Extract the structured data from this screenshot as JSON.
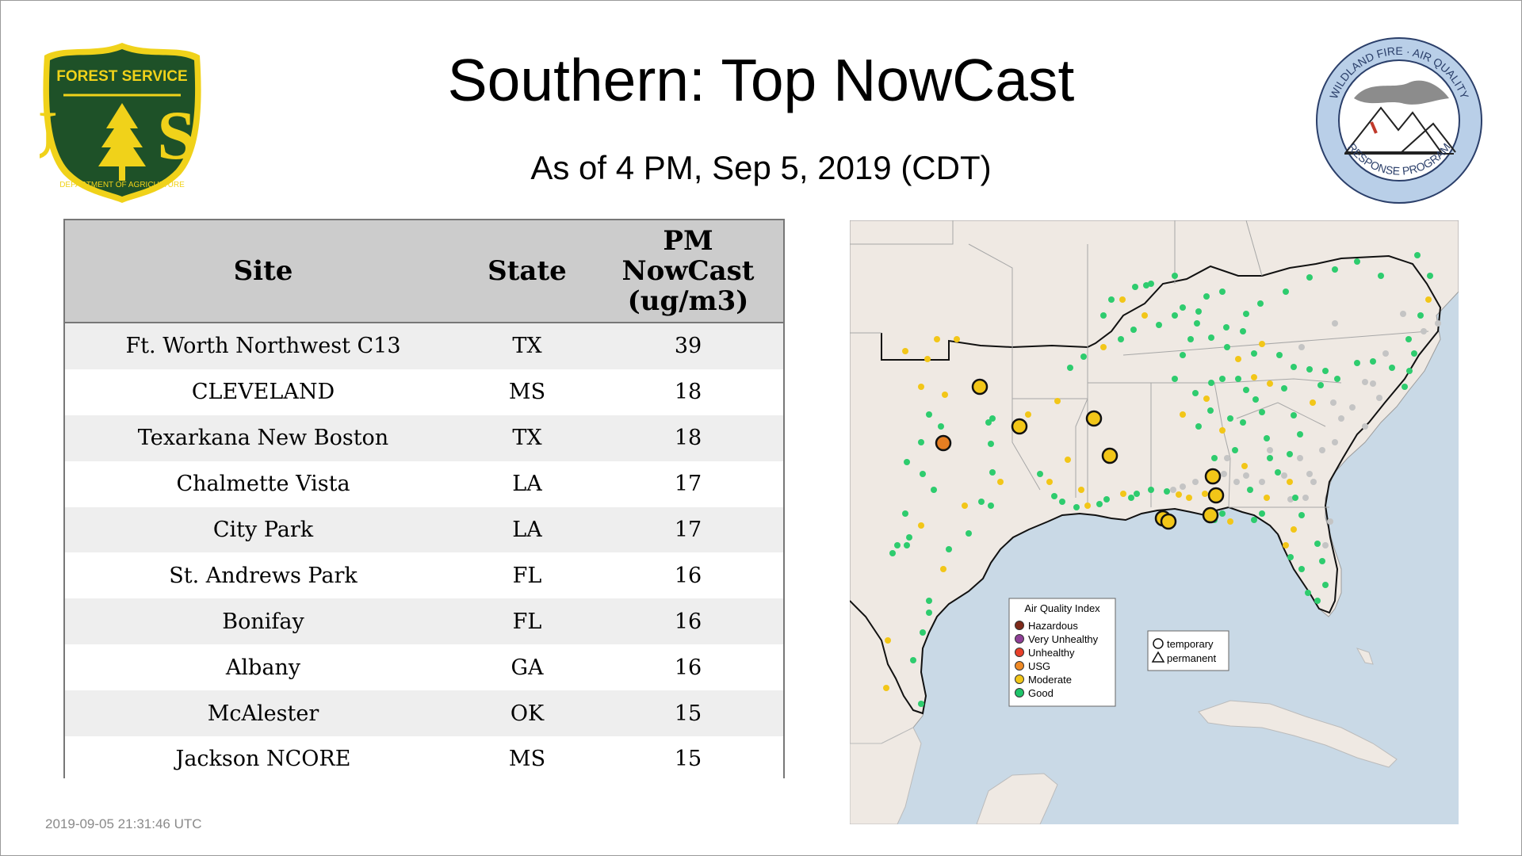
{
  "title": "Southern: Top NowCast",
  "subtitle": "As of  4 PM, Sep  5, 2019 (CDT)",
  "timestamp": "2019-09-05 21:31:46 UTC",
  "logos": {
    "forest_service": {
      "top_text": "FOREST SERVICE",
      "letters": "U S",
      "bottom_text": "DEPARTMENT OF AGRICULTURE"
    },
    "wildland_fire": {
      "top_text": "WILDLAND FIRE · AIR QUALITY",
      "bottom_text": "RESPONSE PROGRAM"
    }
  },
  "table": {
    "headers": {
      "site": "Site",
      "state": "State",
      "pm_line1": "PM",
      "pm_line2": "NowCast",
      "pm_line3": "(ug/m3)"
    },
    "rows": [
      {
        "site": "Ft. Worth Northwest C13",
        "state": "TX",
        "value": "39"
      },
      {
        "site": "CLEVELAND",
        "state": "MS",
        "value": "18"
      },
      {
        "site": "Texarkana New Boston",
        "state": "TX",
        "value": "18"
      },
      {
        "site": "Chalmette Vista",
        "state": "LA",
        "value": "17"
      },
      {
        "site": "City Park",
        "state": "LA",
        "value": "17"
      },
      {
        "site": "St. Andrews Park",
        "state": "FL",
        "value": "16"
      },
      {
        "site": "Bonifay",
        "state": "FL",
        "value": "16"
      },
      {
        "site": "Albany",
        "state": "GA",
        "value": "16"
      },
      {
        "site": "McAlester",
        "state": "OK",
        "value": "15"
      },
      {
        "site": "Jackson NCORE",
        "state": "MS",
        "value": "15"
      }
    ]
  },
  "map": {
    "legend": {
      "title": "Air Quality Index",
      "items": [
        {
          "label": "Hazardous",
          "color": "#7e2a1a"
        },
        {
          "label": "Very Unhealthy",
          "color": "#8f3f97"
        },
        {
          "label": "Unhealthy",
          "color": "#e8402a"
        },
        {
          "label": "USG",
          "color": "#ef8a26"
        },
        {
          "label": "Moderate",
          "color": "#f2c618"
        },
        {
          "label": "Good",
          "color": "#1fc46a"
        }
      ]
    },
    "shape_legend": [
      {
        "label": "temporary",
        "shape": "circle"
      },
      {
        "label": "permanent",
        "shape": "triangle"
      }
    ],
    "colors": {
      "water": "#c9d9e6",
      "land": "#efe9e3",
      "good": "#2ecc6e",
      "moderate": "#f2c618",
      "usg": "#e67e22",
      "inactive": "#c4c4c4"
    }
  }
}
